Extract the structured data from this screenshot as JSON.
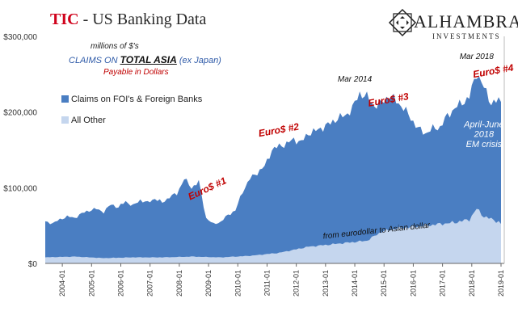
{
  "header": {
    "title_brand": "TIC",
    "title_rest": " - US Banking Data",
    "logo_main": "ALHAMBRA",
    "logo_sub": "INVESTMENTS"
  },
  "subtitle": {
    "units": "millions of $'s",
    "claims_prefix": "CLAIMS ON",
    "claims_emph": "TOTAL ASIA",
    "claims_suffix": "(ex Japan)",
    "payable": "Payable in Dollars"
  },
  "colors": {
    "dark_series": "#4a7ec2",
    "light_series": "#c5d6ee",
    "brand_red": "#d0021b",
    "annotation_red": "#c00000"
  },
  "chart_data": {
    "type": "area",
    "stacked": true,
    "x_start": "2003-06",
    "x_end": "2019-01",
    "x_tick_labels": [
      "2004-01",
      "2005-01",
      "2006-01",
      "2007-01",
      "2008-01",
      "2009-01",
      "2010-01",
      "2011-01",
      "2012-01",
      "2013-01",
      "2014-01",
      "2015-01",
      "2016-01",
      "2017-01",
      "2018-01",
      "2019-01"
    ],
    "y_tick_labels": [
      "$0",
      "$100,000",
      "$200,000",
      "$300,000"
    ],
    "ylim": [
      0,
      300000
    ],
    "grid": false,
    "legend_placement": "left",
    "series": [
      {
        "name": "Claims on FOI's & Foreign Banks",
        "total_points": [
          [
            "2003-06",
            55000
          ],
          [
            "2003-09",
            53000
          ],
          [
            "2003-12",
            58000
          ],
          [
            "2004-03",
            62000
          ],
          [
            "2004-06",
            60000
          ],
          [
            "2004-09",
            66000
          ],
          [
            "2004-12",
            70000
          ],
          [
            "2005-03",
            72000
          ],
          [
            "2005-06",
            68000
          ],
          [
            "2005-09",
            78000
          ],
          [
            "2005-12",
            74000
          ],
          [
            "2006-03",
            82000
          ],
          [
            "2006-06",
            76000
          ],
          [
            "2006-09",
            84000
          ],
          [
            "2006-12",
            80000
          ],
          [
            "2007-03",
            86000
          ],
          [
            "2007-06",
            80000
          ],
          [
            "2007-09",
            88000
          ],
          [
            "2007-12",
            92000
          ],
          [
            "2008-03",
            112000
          ],
          [
            "2008-06",
            100000
          ],
          [
            "2008-09",
            108000
          ],
          [
            "2008-12",
            60000
          ],
          [
            "2009-03",
            52000
          ],
          [
            "2009-06",
            55000
          ],
          [
            "2009-09",
            64000
          ],
          [
            "2009-12",
            70000
          ],
          [
            "2010-03",
            95000
          ],
          [
            "2010-06",
            112000
          ],
          [
            "2010-09",
            120000
          ],
          [
            "2010-12",
            128000
          ],
          [
            "2011-03",
            150000
          ],
          [
            "2011-06",
            155000
          ],
          [
            "2011-09",
            158000
          ],
          [
            "2011-12",
            164000
          ],
          [
            "2012-03",
            160000
          ],
          [
            "2012-06",
            172000
          ],
          [
            "2012-09",
            175000
          ],
          [
            "2012-12",
            180000
          ],
          [
            "2013-03",
            185000
          ],
          [
            "2013-06",
            192000
          ],
          [
            "2013-09",
            195000
          ],
          [
            "2013-12",
            205000
          ],
          [
            "2014-03",
            225000
          ],
          [
            "2014-06",
            220000
          ],
          [
            "2014-09",
            208000
          ],
          [
            "2014-12",
            212000
          ],
          [
            "2015-03",
            222000
          ],
          [
            "2015-06",
            215000
          ],
          [
            "2015-09",
            205000
          ],
          [
            "2015-12",
            192000
          ],
          [
            "2016-03",
            178000
          ],
          [
            "2016-06",
            172000
          ],
          [
            "2016-09",
            178000
          ],
          [
            "2016-12",
            180000
          ],
          [
            "2017-03",
            195000
          ],
          [
            "2017-06",
            205000
          ],
          [
            "2017-09",
            212000
          ],
          [
            "2017-12",
            220000
          ],
          [
            "2018-03",
            252000
          ],
          [
            "2018-06",
            232000
          ],
          [
            "2018-09",
            212000
          ],
          [
            "2018-12",
            215000
          ],
          [
            "2019-01",
            213000
          ]
        ]
      },
      {
        "name": "All Other",
        "points": [
          [
            "2003-06",
            8000
          ],
          [
            "2004-06",
            9000
          ],
          [
            "2005-06",
            7000
          ],
          [
            "2006-06",
            8000
          ],
          [
            "2007-06",
            8000
          ],
          [
            "2008-06",
            9000
          ],
          [
            "2009-06",
            8000
          ],
          [
            "2010-06",
            10000
          ],
          [
            "2011-06",
            14000
          ],
          [
            "2012-06",
            22000
          ],
          [
            "2013-06",
            26000
          ],
          [
            "2014-06",
            30000
          ],
          [
            "2014-12",
            42000
          ],
          [
            "2015-06",
            46000
          ],
          [
            "2016-06",
            50000
          ],
          [
            "2017-06",
            54000
          ],
          [
            "2017-12",
            58000
          ],
          [
            "2018-03",
            72000
          ],
          [
            "2018-06",
            62000
          ],
          [
            "2018-12",
            55000
          ],
          [
            "2019-01",
            52000
          ]
        ]
      }
    ],
    "annotations": [
      {
        "text": "Euro$ #1",
        "x": "2009-01",
        "y": 95000,
        "color": "red",
        "rotate": -25
      },
      {
        "text": "Euro$ #2",
        "x": "2011-06",
        "y": 172000,
        "color": "red",
        "rotate": -10
      },
      {
        "text": "Euro$ #3",
        "x": "2015-03",
        "y": 212000,
        "color": "red",
        "rotate": -10
      },
      {
        "text": "Euro$ #4",
        "x": "2018-10",
        "y": 250000,
        "color": "red",
        "rotate": -10
      },
      {
        "text": "Mar 2014",
        "x": "2014-01",
        "y": 240000,
        "color": "black",
        "rotate": 0
      },
      {
        "text": "Mar 2018",
        "x": "2018-03",
        "y": 270000,
        "color": "black",
        "rotate": 0
      },
      {
        "text": "April-June",
        "x": "2018-06",
        "y": 180000,
        "color": "white",
        "rotate": 0
      },
      {
        "text": "2018",
        "x": "2018-06",
        "y": 167000,
        "color": "white",
        "rotate": 0
      },
      {
        "text": "EM crisis",
        "x": "2018-06",
        "y": 154000,
        "color": "white",
        "rotate": 0
      },
      {
        "text": "from eurodollar to Asian dollar",
        "x": "2014-10",
        "y": 40000,
        "color": "black",
        "rotate": -6
      }
    ]
  }
}
